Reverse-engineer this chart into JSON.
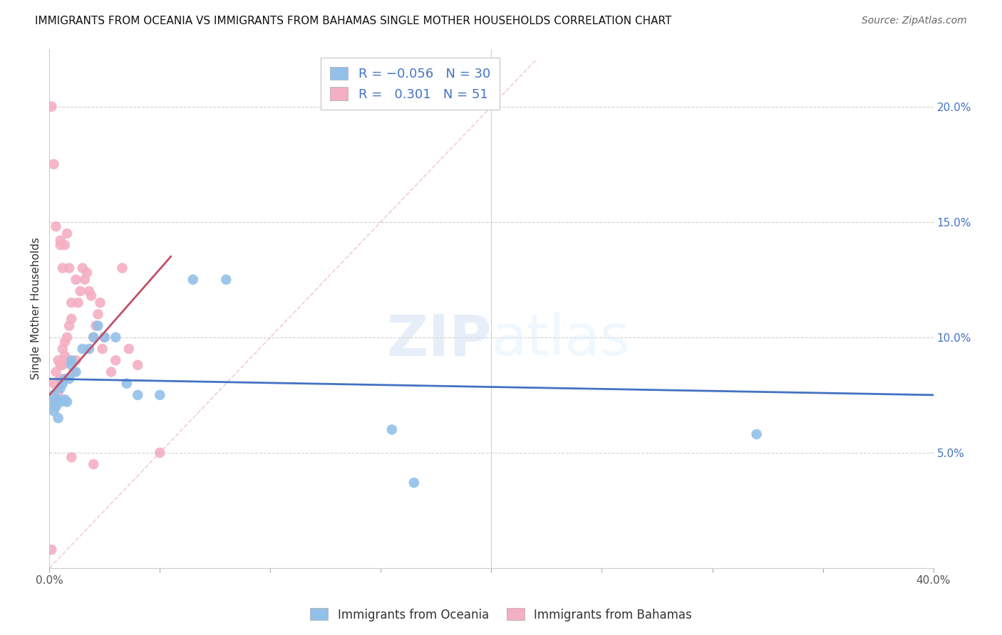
{
  "title": "IMMIGRANTS FROM OCEANIA VS IMMIGRANTS FROM BAHAMAS SINGLE MOTHER HOUSEHOLDS CORRELATION CHART",
  "source": "Source: ZipAtlas.com",
  "ylabel": "Single Mother Households",
  "right_yticks": [
    "20.0%",
    "15.0%",
    "10.0%",
    "5.0%"
  ],
  "right_ytick_vals": [
    0.2,
    0.15,
    0.1,
    0.05
  ],
  "xlim": [
    0.0,
    0.4
  ],
  "ylim": [
    0.0,
    0.225
  ],
  "oceania_color": "#92c0e8",
  "bahamas_color": "#f4afc2",
  "trendline_oceania_color": "#4472c4",
  "trendline_bahamas_color": "#c0506a",
  "diag_color": "#f0c0cc",
  "watermark_zip": "ZIP",
  "watermark_atlas": "atlas",
  "background_color": "#ffffff",
  "oceania_x": [
    0.001,
    0.002,
    0.002,
    0.003,
    0.004,
    0.004,
    0.005,
    0.005,
    0.006,
    0.007,
    0.007,
    0.008,
    0.009,
    0.01,
    0.01,
    0.012,
    0.015,
    0.018,
    0.02,
    0.022,
    0.025,
    0.03,
    0.035,
    0.04,
    0.05,
    0.065,
    0.08,
    0.155,
    0.165,
    0.32
  ],
  "oceania_y": [
    0.072,
    0.068,
    0.075,
    0.07,
    0.065,
    0.073,
    0.072,
    0.078,
    0.08,
    0.073,
    0.082,
    0.072,
    0.082,
    0.09,
    0.088,
    0.085,
    0.095,
    0.095,
    0.1,
    0.105,
    0.1,
    0.1,
    0.08,
    0.075,
    0.075,
    0.125,
    0.125,
    0.06,
    0.037,
    0.058
  ],
  "bahamas_x": [
    0.001,
    0.002,
    0.002,
    0.002,
    0.003,
    0.003,
    0.004,
    0.004,
    0.005,
    0.005,
    0.005,
    0.006,
    0.006,
    0.006,
    0.007,
    0.007,
    0.007,
    0.008,
    0.008,
    0.008,
    0.009,
    0.009,
    0.01,
    0.01,
    0.011,
    0.012,
    0.012,
    0.013,
    0.014,
    0.015,
    0.016,
    0.017,
    0.018,
    0.019,
    0.02,
    0.021,
    0.022,
    0.023,
    0.024,
    0.025,
    0.028,
    0.03,
    0.033,
    0.036,
    0.04,
    0.05,
    0.001,
    0.003,
    0.005,
    0.01,
    0.02
  ],
  "bahamas_y": [
    0.008,
    0.07,
    0.08,
    0.175,
    0.072,
    0.085,
    0.076,
    0.09,
    0.082,
    0.088,
    0.14,
    0.088,
    0.095,
    0.13,
    0.092,
    0.098,
    0.14,
    0.09,
    0.1,
    0.145,
    0.105,
    0.13,
    0.108,
    0.115,
    0.085,
    0.09,
    0.125,
    0.115,
    0.12,
    0.13,
    0.125,
    0.128,
    0.12,
    0.118,
    0.1,
    0.105,
    0.11,
    0.115,
    0.095,
    0.1,
    0.085,
    0.09,
    0.13,
    0.095,
    0.088,
    0.05,
    0.2,
    0.148,
    0.142,
    0.048,
    0.045
  ],
  "trendline_oceania_start_x": 0.0,
  "trendline_oceania_end_x": 0.4,
  "trendline_oceania_start_y": 0.082,
  "trendline_oceania_end_y": 0.075,
  "trendline_bahamas_start_x": 0.0,
  "trendline_bahamas_end_x": 0.055,
  "trendline_bahamas_start_y": 0.075,
  "trendline_bahamas_end_y": 0.135
}
